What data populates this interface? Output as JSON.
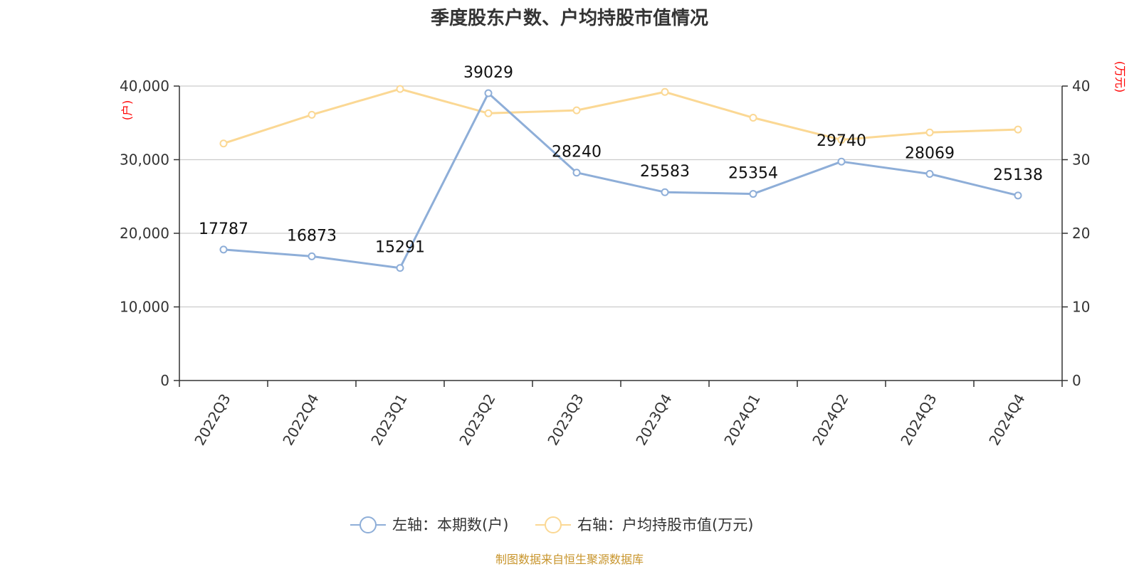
{
  "chart_data": {
    "type": "line",
    "title": "季度股东户数、户均持股市值情况",
    "categories": [
      "2022Q3",
      "2022Q4",
      "2023Q1",
      "2023Q2",
      "2023Q3",
      "2023Q4",
      "2024Q1",
      "2024Q2",
      "2024Q3",
      "2024Q4"
    ],
    "left_axis": {
      "unit": "(户)",
      "range": [
        0,
        40000
      ],
      "ticks": [
        0,
        10000,
        20000,
        30000,
        40000
      ],
      "tick_labels": [
        "0",
        "10,000",
        "20,000",
        "30,000",
        "40,000"
      ]
    },
    "right_axis": {
      "unit": "(万元)",
      "range": [
        0,
        40
      ],
      "ticks": [
        0,
        10,
        20,
        30,
        40
      ],
      "tick_labels": [
        "0",
        "10",
        "20",
        "30",
        "40"
      ]
    },
    "grid": true,
    "legend_position": "bottom",
    "series": [
      {
        "name": "左轴：本期数(户)",
        "axis": "left",
        "color": "#8eaed8",
        "values": [
          17787,
          16873,
          15291,
          39029,
          28240,
          25583,
          25354,
          29740,
          28069,
          25138
        ],
        "labels": [
          "17787",
          "16873",
          "15291",
          "39029",
          "28240",
          "25583",
          "25354",
          "29740",
          "28069",
          "25138"
        ]
      },
      {
        "name": "右轴：户均持股市值(万元)",
        "axis": "right",
        "color": "#fbd894",
        "values": [
          32.2,
          36.1,
          39.6,
          36.3,
          36.7,
          39.2,
          35.7,
          32.7,
          33.7,
          34.1
        ]
      }
    ],
    "source": "制图数据来自恒生聚源数据库"
  }
}
